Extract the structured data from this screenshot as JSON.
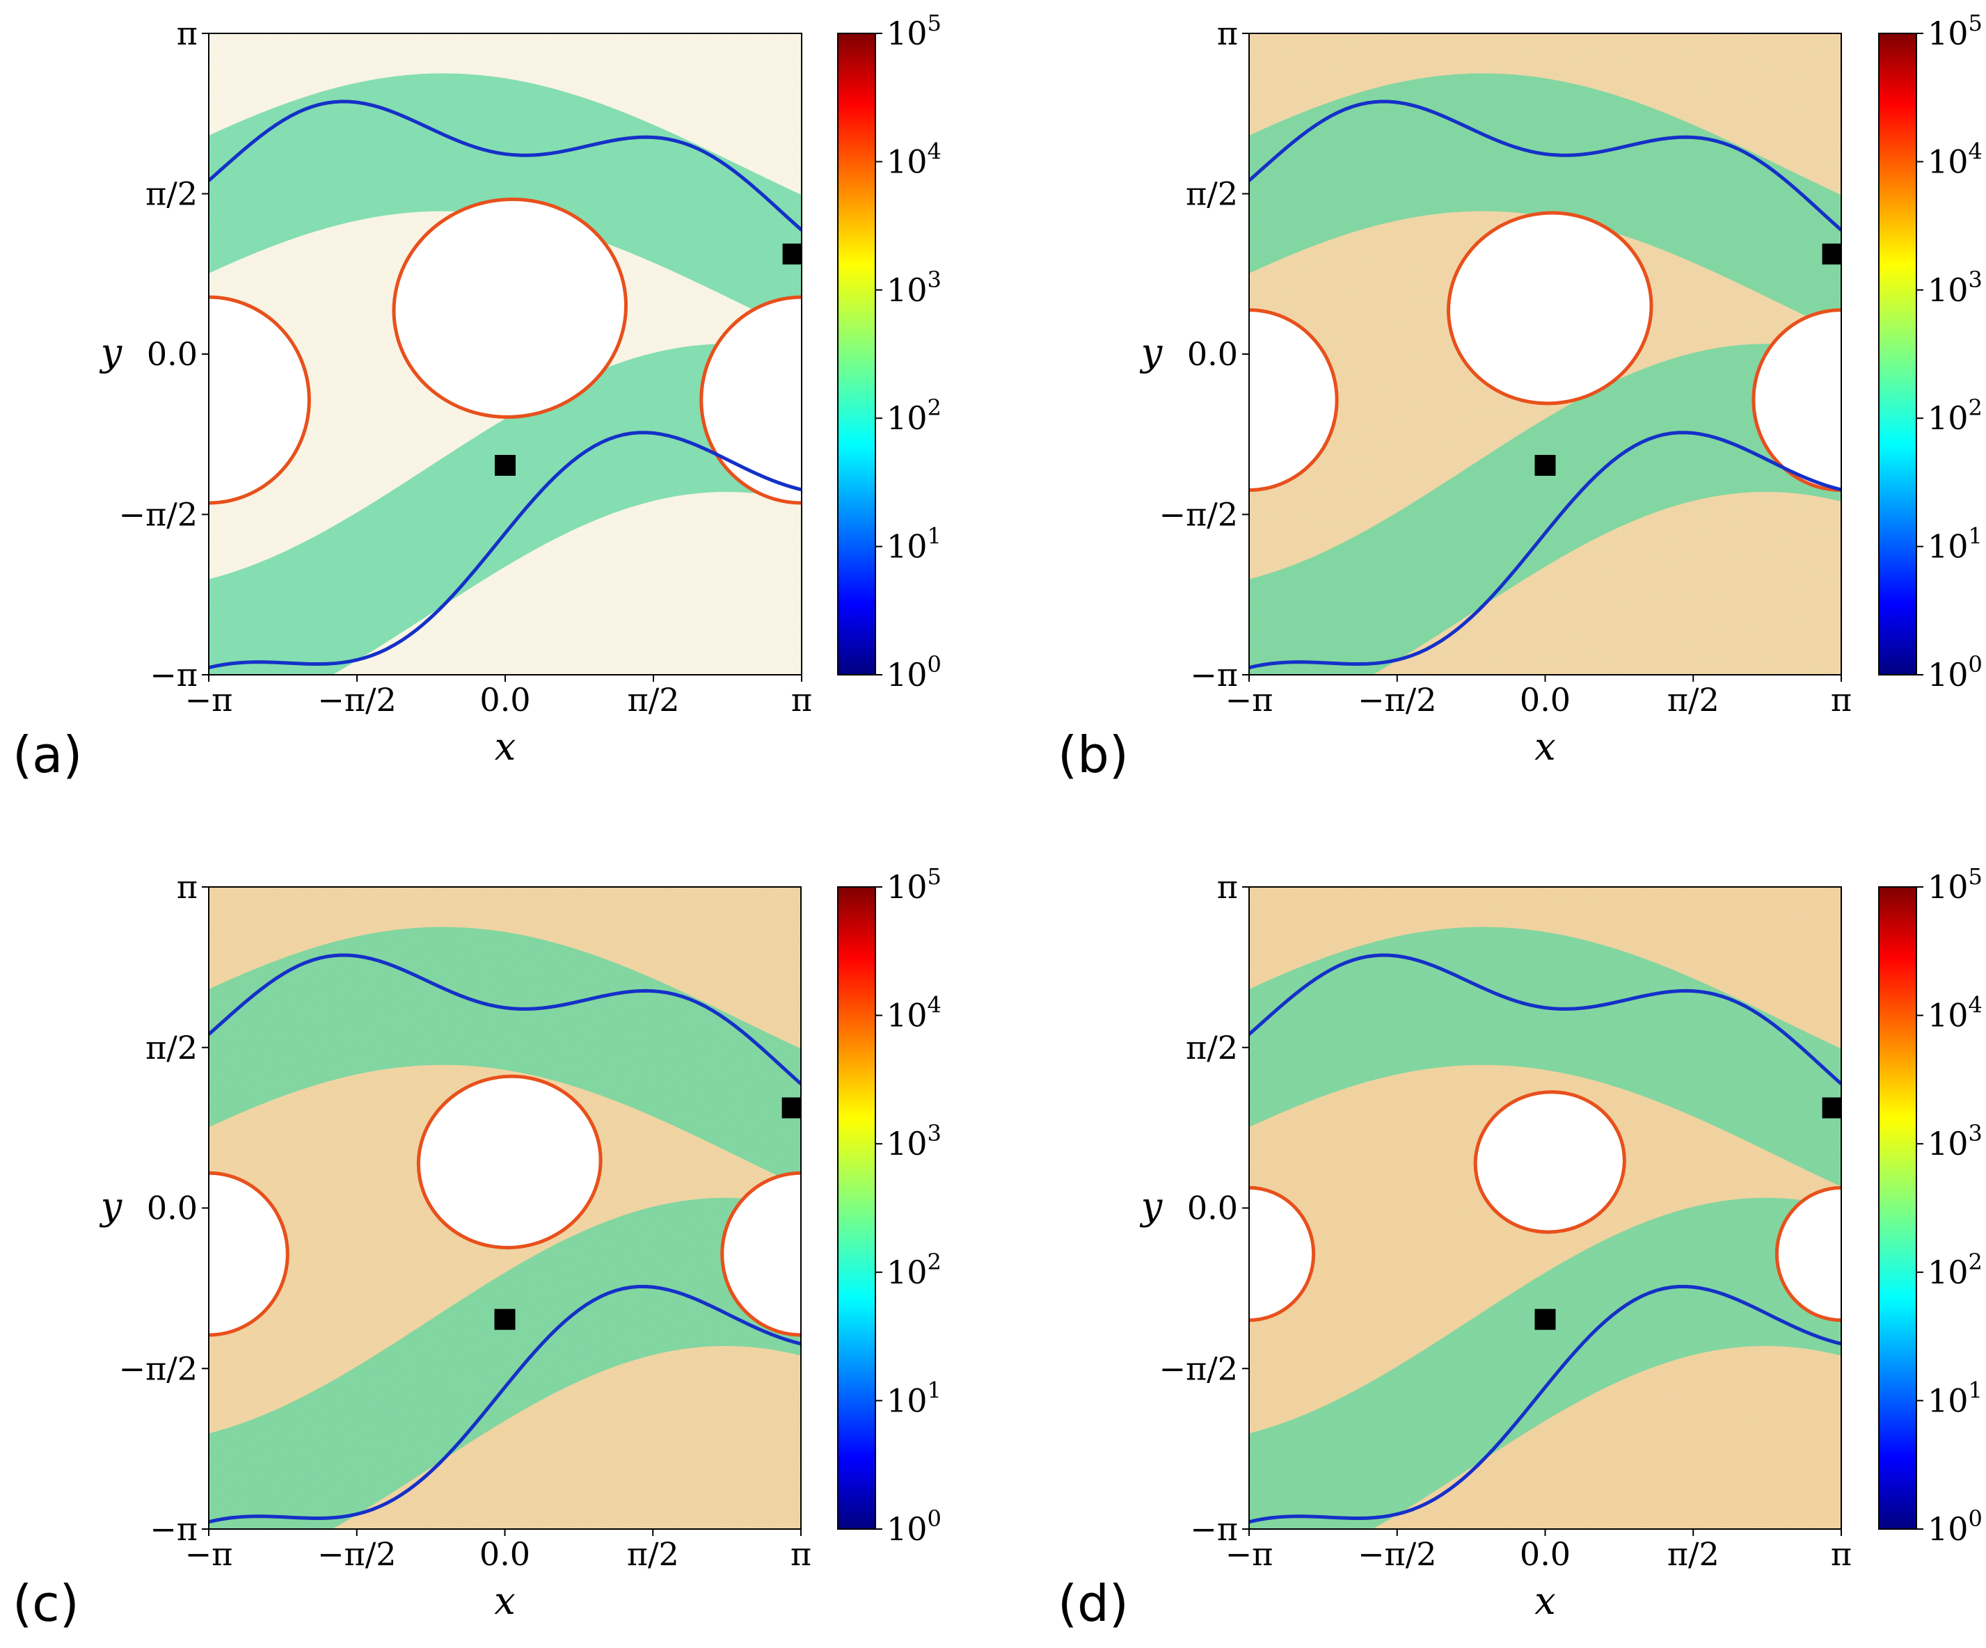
{
  "chart_data": [
    {
      "type": "heatmap",
      "panel_label": "(a)",
      "xlabel": "x",
      "ylabel": "y",
      "xlim": [
        "-π",
        "π"
      ],
      "ylim": [
        "-π",
        "π"
      ],
      "x_ticks": [
        "−π",
        "−π/2",
        "0.0",
        "π/2",
        "π"
      ],
      "y_ticks": [
        "−π",
        "−π/2",
        "0.0",
        "π/2",
        "π"
      ],
      "colorbar": {
        "scale": "log",
        "range": [
          1,
          100000
        ],
        "ticks": [
          "10",
          "10",
          "10",
          "10",
          "10",
          "10"
        ],
        "exponents": [
          "0",
          "1",
          "2",
          "3",
          "4",
          "5"
        ],
        "colormap": "jet"
      },
      "markers": [
        {
          "x": 0.0,
          "y": -1.09
        },
        {
          "x": 3.05,
          "y": 0.98
        }
      ],
      "island_coverage": 0.56,
      "background_density": 0.18
    },
    {
      "type": "heatmap",
      "panel_label": "(b)",
      "xlabel": "x",
      "ylabel": "y",
      "xlim": [
        "-π",
        "π"
      ],
      "ylim": [
        "-π",
        "π"
      ],
      "x_ticks": [
        "−π",
        "−π/2",
        "0.0",
        "π/2",
        "π"
      ],
      "y_ticks": [
        "−π",
        "−π/2",
        "0.0",
        "π/2",
        "π"
      ],
      "colorbar": {
        "scale": "log",
        "range": [
          1,
          100000
        ],
        "ticks": [
          "10",
          "10",
          "10",
          "10",
          "10",
          "10"
        ],
        "exponents": [
          "0",
          "1",
          "2",
          "3",
          "4",
          "5"
        ],
        "colormap": "jet"
      },
      "markers": [
        {
          "x": 0.0,
          "y": -1.09
        },
        {
          "x": 3.05,
          "y": 0.98
        }
      ],
      "island_coverage": 0.49,
      "background_density": 0.9
    },
    {
      "type": "heatmap",
      "panel_label": "(c)",
      "xlabel": "x",
      "ylabel": "y",
      "xlim": [
        "-π",
        "π"
      ],
      "ylim": [
        "-π",
        "π"
      ],
      "x_ticks": [
        "−π",
        "−π/2",
        "0.0",
        "π/2",
        "π"
      ],
      "y_ticks": [
        "−π",
        "−π/2",
        "0.0",
        "π/2",
        "π"
      ],
      "colorbar": {
        "scale": "log",
        "range": [
          1,
          100000
        ],
        "ticks": [
          "10",
          "10",
          "10",
          "10",
          "10",
          "10"
        ],
        "exponents": [
          "0",
          "1",
          "2",
          "3",
          "4",
          "5"
        ],
        "colormap": "jet"
      },
      "markers": [
        {
          "x": 0.0,
          "y": -1.09
        },
        {
          "x": 3.05,
          "y": 0.98
        }
      ],
      "island_coverage": 0.44,
      "background_density": 0.95
    },
    {
      "type": "heatmap",
      "panel_label": "(d)",
      "xlabel": "x",
      "ylabel": "y",
      "xlim": [
        "-π",
        "π"
      ],
      "ylim": [
        "-π",
        "π"
      ],
      "x_ticks": [
        "−π",
        "−π/2",
        "0.0",
        "π/2",
        "π"
      ],
      "y_ticks": [
        "−π",
        "−π/2",
        "0.0",
        "π/2",
        "π"
      ],
      "colorbar": {
        "scale": "log",
        "range": [
          1,
          100000
        ],
        "ticks": [
          "10",
          "10",
          "10",
          "10",
          "10",
          "10"
        ],
        "exponents": [
          "0",
          "1",
          "2",
          "3",
          "4",
          "5"
        ],
        "colormap": "jet"
      },
      "markers": [
        {
          "x": 0.0,
          "y": -1.09
        },
        {
          "x": 3.05,
          "y": 0.98
        }
      ],
      "island_coverage": 0.36,
      "background_density": 1.0
    }
  ]
}
